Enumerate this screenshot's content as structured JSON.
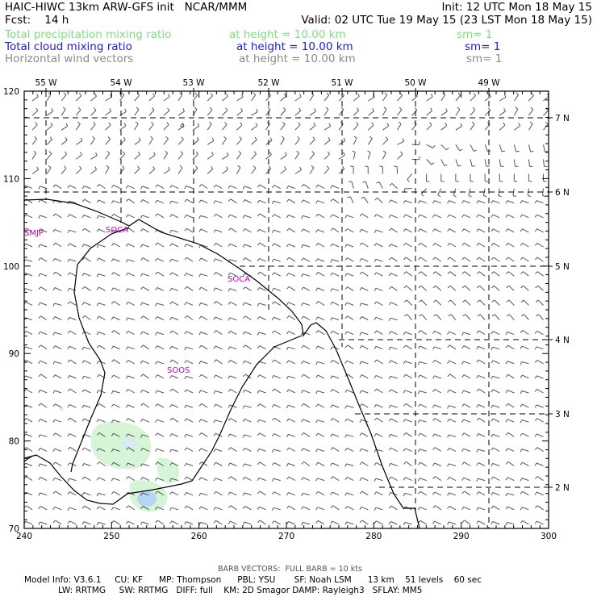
{
  "header": {
    "title_left": "HAIC-HIWC 13km ARW-GFS init   NCAR/MMM",
    "init": "Init: 12 UTC Mon 18 May 15",
    "fcst": "Fcst:    14 h",
    "valid": "Valid: 02 UTC Tue 19 May 15 (23 LST Mon 18 May 15)",
    "fields": [
      {
        "name": "Total precipitation mixing ratio",
        "height": "at height = 10.00 km",
        "sm": "sm= 1"
      },
      {
        "name": "Total cloud mixing ratio",
        "height": "at height = 10.00 km",
        "sm": "sm= 1"
      },
      {
        "name": "Horizontal wind vectors",
        "height": "at height = 10.00 km",
        "sm": "sm= 1"
      }
    ]
  },
  "map": {
    "top_lon_labels": [
      "55 W",
      "54 W",
      "53 W",
      "52 W",
      "51 W",
      "50 W",
      "49 W"
    ],
    "right_lat_labels": [
      "7 N",
      "6 N",
      "5 N",
      "4 N",
      "3 N",
      "2 N"
    ],
    "left_ticks": [
      "120",
      "110",
      "100",
      "90",
      "80",
      "70"
    ],
    "bottom_ticks": [
      "240",
      "250",
      "260",
      "270",
      "280",
      "290",
      "300"
    ],
    "stations": [
      "SMJP",
      "SOCA",
      "SOCA",
      "SOOS"
    ],
    "colors": {
      "precip_fill": "#d6f5d6",
      "cloud_fill": "#b8d4f5",
      "station": "#cc00cc",
      "barb": "#555555"
    }
  },
  "footer": {
    "barb_note": "BARB VECTORS:  FULL BARB = 10 kts",
    "line1": "Model Info: V3.6.1     CU: KF      MP: Thompson      PBL: YSU       SF: Noah LSM      13 km    51 levels    60 sec",
    "line2": "LW: RRTMG     SW: RRTMG   DIFF: full    KM: 2D Smagor DAMP: Rayleigh3   SFLAY: MM5"
  }
}
